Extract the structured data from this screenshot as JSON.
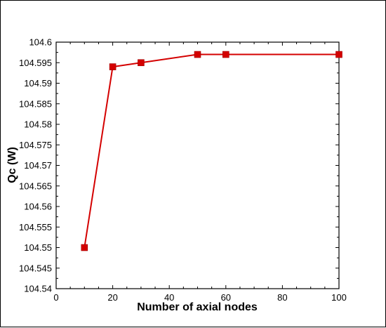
{
  "chart_data": {
    "type": "line",
    "title": "",
    "xlabel": "Number of axial nodes",
    "ylabel": "Qc (W)",
    "xlim": [
      0,
      100
    ],
    "ylim": [
      104.54,
      104.6
    ],
    "xticks": [
      0,
      20,
      40,
      60,
      80,
      100
    ],
    "yticks": [
      104.54,
      104.545,
      104.55,
      104.555,
      104.56,
      104.565,
      104.57,
      104.575,
      104.58,
      104.585,
      104.59,
      104.595,
      104.6
    ],
    "xtick_labels": [
      "0",
      "20",
      "40",
      "60",
      "80",
      "100"
    ],
    "ytick_labels": [
      "104.54",
      "104.545",
      "104.55",
      "104.555",
      "104.56",
      "104.565",
      "104.57",
      "104.575",
      "104.58",
      "104.585",
      "104.59",
      "104.595",
      "104.6"
    ],
    "grid": false,
    "legend": "none",
    "series": [
      {
        "x": [
          10,
          20,
          30,
          50,
          60,
          100
        ],
        "y": [
          104.55,
          104.594,
          104.595,
          104.597,
          104.597,
          104.597
        ],
        "color": "#d40000",
        "marker": "square"
      }
    ]
  }
}
